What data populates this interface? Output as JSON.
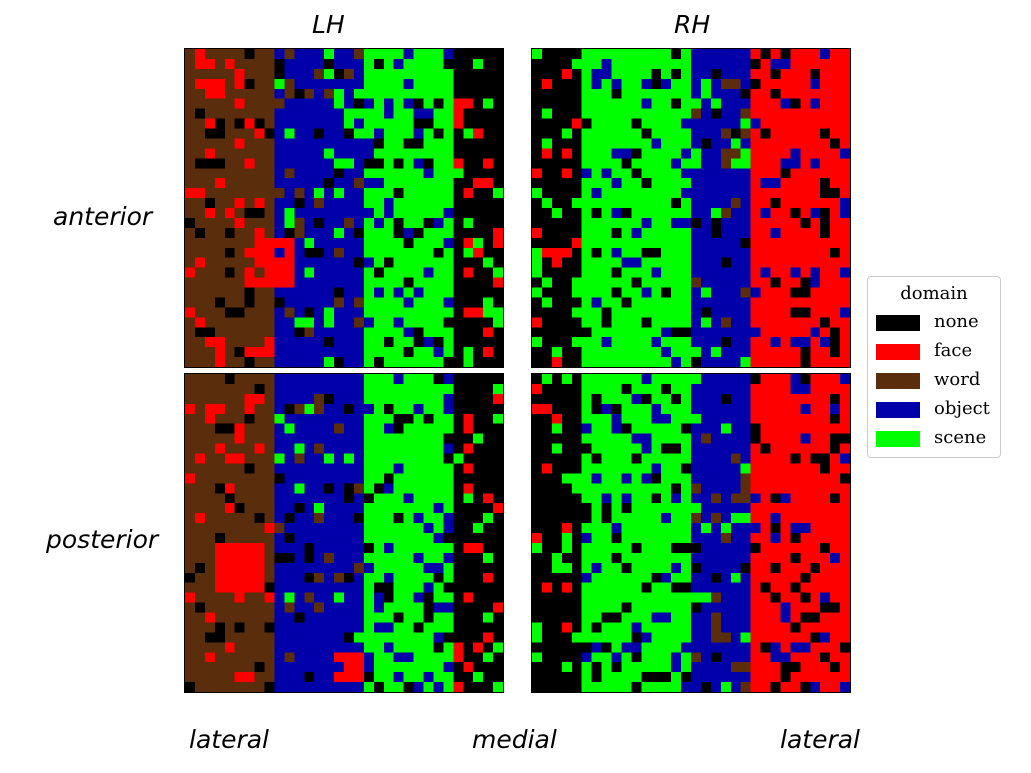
{
  "chart_data": {
    "type": "heatmap",
    "columns": [
      "LH",
      "RH"
    ],
    "rows": [
      "anterior",
      "posterior"
    ],
    "x_axis_labels": [
      "lateral",
      "medial",
      "lateral"
    ],
    "legend": {
      "title": "domain",
      "entries": [
        {
          "label": "none",
          "color": "#000000"
        },
        {
          "label": "face",
          "color": "#ff0000"
        },
        {
          "label": "word",
          "color": "#5a2d0c"
        },
        {
          "label": "object",
          "color": "#0000aa"
        },
        {
          "label": "scene",
          "color": "#00ff00"
        }
      ]
    },
    "grid_size": 32,
    "panels": [
      {
        "hemisphere": "LH",
        "region": "anterior",
        "bands": [
          {
            "domain": "word",
            "from": 0,
            "to": 9
          },
          {
            "domain": "object",
            "from": 9,
            "to": 18
          },
          {
            "domain": "scene",
            "from": 18,
            "to": 27
          },
          {
            "domain": "none",
            "from": 27,
            "to": 32
          }
        ],
        "face_patches": [
          {
            "row": 19,
            "col": 6,
            "size": 5
          },
          {
            "row": 3,
            "col": 2,
            "size": 2
          },
          {
            "row": 29,
            "col": 2,
            "size": 2
          }
        ]
      },
      {
        "hemisphere": "RH",
        "region": "anterior",
        "bands": [
          {
            "domain": "none",
            "from": 0,
            "to": 5
          },
          {
            "domain": "scene",
            "from": 5,
            "to": 16
          },
          {
            "domain": "object",
            "from": 16,
            "to": 22
          },
          {
            "domain": "face",
            "from": 22,
            "to": 32
          }
        ],
        "face_patches": []
      },
      {
        "hemisphere": "LH",
        "region": "posterior",
        "bands": [
          {
            "domain": "word",
            "from": 0,
            "to": 9
          },
          {
            "domain": "object",
            "from": 9,
            "to": 18
          },
          {
            "domain": "scene",
            "from": 18,
            "to": 27
          },
          {
            "domain": "none",
            "from": 27,
            "to": 32
          }
        ],
        "face_patches": [
          {
            "row": 17,
            "col": 3,
            "size": 5
          },
          {
            "row": 3,
            "col": 2,
            "size": 2
          },
          {
            "row": 28,
            "col": 15,
            "size": 3
          }
        ]
      },
      {
        "hemisphere": "RH",
        "region": "posterior",
        "bands": [
          {
            "domain": "none",
            "from": 0,
            "to": 5
          },
          {
            "domain": "scene",
            "from": 5,
            "to": 16
          },
          {
            "domain": "object",
            "from": 16,
            "to": 22
          },
          {
            "domain": "face",
            "from": 22,
            "to": 32
          }
        ],
        "face_patches": []
      }
    ]
  }
}
